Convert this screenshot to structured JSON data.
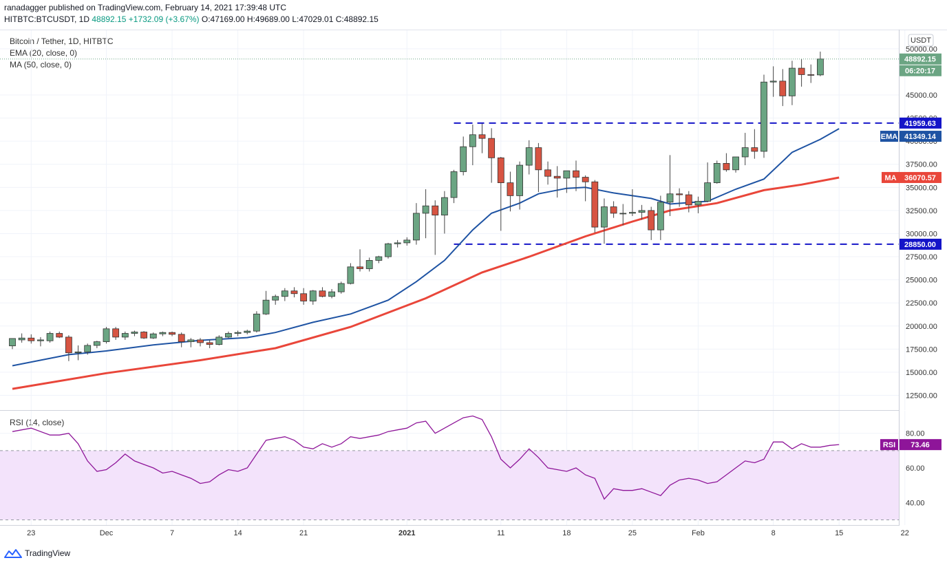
{
  "header": {
    "published_line": "ranadagger published on TradingView.com, February 14, 2021 17:39:48 UTC",
    "symbol": "HITBTC:BTCUSDT, 1D",
    "last": "48892.15",
    "change": "+1732.09 (+3.67%)",
    "open": "O:47169.00",
    "high": "H:49689.00",
    "low": "L:47029.01",
    "close": "C:48892.15"
  },
  "legend": {
    "title": "Bitcoin / Tether, 1D, HITBTC",
    "ema": "EMA (20, close, 0)",
    "ma": "MA (50, close, 0)",
    "rsi": "RSI (14, close)"
  },
  "currency_badge": "USDT",
  "price_labels": {
    "last_price": "48892.15",
    "countdown": "06:20:17",
    "resistance": "41959.63",
    "ema_name": "EMA",
    "ema_value": "41349.14",
    "ma_name": "MA",
    "ma_value": "36070.57",
    "support": "28850.00",
    "rsi_name": "RSI",
    "rsi_value": "73.46"
  },
  "colors": {
    "bull": "#6ba583",
    "bear": "#d75442",
    "ema": "#1e53a3",
    "ma": "#e9463a",
    "level_line": "#1414c8",
    "rsi_line": "#8e1599",
    "rsi_band": "#f3e3fb"
  },
  "watermark": "TradingView",
  "chart_data": {
    "type": "candlestick",
    "title": "Bitcoin / Tether, 1D, HITBTC",
    "y_axis": {
      "ticks": [
        "50000.00",
        "45000.00",
        "42500.00",
        "40000.00",
        "37500.00",
        "35000.00",
        "32500.00",
        "30000.00",
        "27500.00",
        "25000.00",
        "22500.00",
        "20000.00",
        "17500.00",
        "15000.00",
        "12500.00"
      ],
      "tick_values": [
        50000,
        45000,
        42500,
        40000,
        37500,
        35000,
        32500,
        30000,
        27500,
        25000,
        22500,
        20000,
        17500,
        15000,
        12500
      ],
      "range": [
        10900,
        52000
      ]
    },
    "x_axis": {
      "labels": [
        "23",
        "Dec",
        "7",
        "14",
        "21",
        "2021",
        "11",
        "18",
        "25",
        "Feb",
        "8",
        "15",
        "22"
      ],
      "label_days": [
        2,
        10,
        17,
        24,
        31,
        42,
        52,
        59,
        66,
        73,
        81,
        88,
        95
      ]
    },
    "horizontal_levels": [
      41959.63,
      28850.0
    ],
    "candles": [
      {
        "o": 17850,
        "h": 18600,
        "l": 17500,
        "c": 18650
      },
      {
        "o": 18500,
        "h": 19200,
        "l": 18200,
        "c": 18700
      },
      {
        "o": 18700,
        "h": 19100,
        "l": 18100,
        "c": 18400
      },
      {
        "o": 18400,
        "h": 18800,
        "l": 17800,
        "c": 18500
      },
      {
        "o": 18400,
        "h": 19400,
        "l": 18200,
        "c": 19200
      },
      {
        "o": 19200,
        "h": 19400,
        "l": 18700,
        "c": 18800
      },
      {
        "o": 18800,
        "h": 19000,
        "l": 16200,
        "c": 17100
      },
      {
        "o": 17100,
        "h": 17900,
        "l": 16300,
        "c": 17200
      },
      {
        "o": 17200,
        "h": 18100,
        "l": 16900,
        "c": 17900
      },
      {
        "o": 17900,
        "h": 18400,
        "l": 17600,
        "c": 18300
      },
      {
        "o": 18300,
        "h": 19900,
        "l": 18100,
        "c": 19700
      },
      {
        "o": 19700,
        "h": 19900,
        "l": 18500,
        "c": 18800
      },
      {
        "o": 18800,
        "h": 19400,
        "l": 18500,
        "c": 19200
      },
      {
        "o": 19200,
        "h": 19500,
        "l": 18900,
        "c": 19350
      },
      {
        "o": 19350,
        "h": 19450,
        "l": 18600,
        "c": 18700
      },
      {
        "o": 18700,
        "h": 19300,
        "l": 18600,
        "c": 19150
      },
      {
        "o": 19150,
        "h": 19400,
        "l": 18900,
        "c": 19300
      },
      {
        "o": 19300,
        "h": 19400,
        "l": 18900,
        "c": 19100
      },
      {
        "o": 19100,
        "h": 19300,
        "l": 17700,
        "c": 18300
      },
      {
        "o": 18300,
        "h": 18700,
        "l": 17700,
        "c": 18500
      },
      {
        "o": 18500,
        "h": 18700,
        "l": 17800,
        "c": 18200
      },
      {
        "o": 18200,
        "h": 18500,
        "l": 17600,
        "c": 18000
      },
      {
        "o": 18000,
        "h": 19000,
        "l": 17900,
        "c": 18800
      },
      {
        "o": 18800,
        "h": 19400,
        "l": 18700,
        "c": 19200
      },
      {
        "o": 19200,
        "h": 19500,
        "l": 18900,
        "c": 19300
      },
      {
        "o": 19300,
        "h": 19600,
        "l": 19100,
        "c": 19450
      },
      {
        "o": 19450,
        "h": 21600,
        "l": 19300,
        "c": 21300
      },
      {
        "o": 21300,
        "h": 23800,
        "l": 21200,
        "c": 22800
      },
      {
        "o": 22800,
        "h": 23400,
        "l": 22300,
        "c": 23200
      },
      {
        "o": 23200,
        "h": 24100,
        "l": 22700,
        "c": 23800
      },
      {
        "o": 23800,
        "h": 24200,
        "l": 23100,
        "c": 23500
      },
      {
        "o": 23500,
        "h": 24100,
        "l": 22300,
        "c": 22700
      },
      {
        "o": 22700,
        "h": 23900,
        "l": 22300,
        "c": 23800
      },
      {
        "o": 23800,
        "h": 24200,
        "l": 23100,
        "c": 23200
      },
      {
        "o": 23200,
        "h": 24000,
        "l": 23000,
        "c": 23700
      },
      {
        "o": 23700,
        "h": 24800,
        "l": 23500,
        "c": 24600
      },
      {
        "o": 24600,
        "h": 26800,
        "l": 24500,
        "c": 26400
      },
      {
        "o": 26400,
        "h": 28300,
        "l": 25900,
        "c": 26200
      },
      {
        "o": 26200,
        "h": 27400,
        "l": 25900,
        "c": 27100
      },
      {
        "o": 27100,
        "h": 27600,
        "l": 26800,
        "c": 27500
      },
      {
        "o": 27500,
        "h": 29000,
        "l": 27300,
        "c": 28900
      },
      {
        "o": 28900,
        "h": 29300,
        "l": 28500,
        "c": 29000
      },
      {
        "o": 29000,
        "h": 29600,
        "l": 28700,
        "c": 29300
      },
      {
        "o": 29300,
        "h": 33300,
        "l": 28800,
        "c": 32200
      },
      {
        "o": 32200,
        "h": 34800,
        "l": 29500,
        "c": 33000
      },
      {
        "o": 33000,
        "h": 33600,
        "l": 27700,
        "c": 32000
      },
      {
        "o": 32000,
        "h": 34600,
        "l": 30000,
        "c": 33900
      },
      {
        "o": 33900,
        "h": 36900,
        "l": 33300,
        "c": 36700
      },
      {
        "o": 36700,
        "h": 40500,
        "l": 36300,
        "c": 39400
      },
      {
        "o": 39400,
        "h": 41800,
        "l": 37400,
        "c": 40700
      },
      {
        "o": 40700,
        "h": 41900,
        "l": 38700,
        "c": 40300
      },
      {
        "o": 40300,
        "h": 41400,
        "l": 35500,
        "c": 38200
      },
      {
        "o": 38200,
        "h": 38300,
        "l": 30300,
        "c": 35500
      },
      {
        "o": 35500,
        "h": 36700,
        "l": 32400,
        "c": 34100
      },
      {
        "o": 34100,
        "h": 37800,
        "l": 32600,
        "c": 37400
      },
      {
        "o": 37400,
        "h": 40100,
        "l": 36400,
        "c": 39300
      },
      {
        "o": 39300,
        "h": 39800,
        "l": 34500,
        "c": 36900
      },
      {
        "o": 36900,
        "h": 37800,
        "l": 35300,
        "c": 36200
      },
      {
        "o": 36200,
        "h": 37300,
        "l": 33900,
        "c": 36000
      },
      {
        "o": 36000,
        "h": 36500,
        "l": 34400,
        "c": 36800
      },
      {
        "o": 36800,
        "h": 37900,
        "l": 34600,
        "c": 36100
      },
      {
        "o": 36100,
        "h": 36300,
        "l": 33500,
        "c": 35600
      },
      {
        "o": 35600,
        "h": 35800,
        "l": 30100,
        "c": 30700
      },
      {
        "o": 30700,
        "h": 33800,
        "l": 28900,
        "c": 32900
      },
      {
        "o": 32900,
        "h": 33500,
        "l": 31700,
        "c": 32200
      },
      {
        "o": 32200,
        "h": 33200,
        "l": 30900,
        "c": 32200
      },
      {
        "o": 32200,
        "h": 34800,
        "l": 31900,
        "c": 32300
      },
      {
        "o": 32300,
        "h": 33100,
        "l": 31500,
        "c": 32500
      },
      {
        "o": 32500,
        "h": 32900,
        "l": 29300,
        "c": 30400
      },
      {
        "o": 30400,
        "h": 34100,
        "l": 29300,
        "c": 33400
      },
      {
        "o": 33400,
        "h": 38500,
        "l": 31900,
        "c": 34300
      },
      {
        "o": 34300,
        "h": 34900,
        "l": 32900,
        "c": 34200
      },
      {
        "o": 34200,
        "h": 34600,
        "l": 32300,
        "c": 33100
      },
      {
        "o": 33100,
        "h": 34000,
        "l": 32200,
        "c": 33500
      },
      {
        "o": 33500,
        "h": 37700,
        "l": 33400,
        "c": 35500
      },
      {
        "o": 35500,
        "h": 37900,
        "l": 35400,
        "c": 37600
      },
      {
        "o": 37600,
        "h": 38700,
        "l": 36700,
        "c": 36900
      },
      {
        "o": 36900,
        "h": 38300,
        "l": 36600,
        "c": 38300
      },
      {
        "o": 38300,
        "h": 40900,
        "l": 37400,
        "c": 39300
      },
      {
        "o": 39300,
        "h": 41300,
        "l": 38100,
        "c": 38900
      },
      {
        "o": 38900,
        "h": 47200,
        "l": 38200,
        "c": 46400
      },
      {
        "o": 46400,
        "h": 48100,
        "l": 44800,
        "c": 46500
      },
      {
        "o": 46500,
        "h": 47800,
        "l": 43800,
        "c": 44900
      },
      {
        "o": 44900,
        "h": 48700,
        "l": 43900,
        "c": 47900
      },
      {
        "o": 47900,
        "h": 48900,
        "l": 45900,
        "c": 47200
      },
      {
        "o": 47200,
        "h": 48300,
        "l": 46300,
        "c": 47169
      },
      {
        "o": 47169,
        "h": 49689,
        "l": 47029,
        "c": 48892
      }
    ],
    "ema20": [
      {
        "d": 0,
        "v": 15700
      },
      {
        "d": 6,
        "v": 16900
      },
      {
        "d": 10,
        "v": 17300
      },
      {
        "d": 15,
        "v": 17950
      },
      {
        "d": 20,
        "v": 18450
      },
      {
        "d": 25,
        "v": 18750
      },
      {
        "d": 28,
        "v": 19300
      },
      {
        "d": 32,
        "v": 20400
      },
      {
        "d": 36,
        "v": 21300
      },
      {
        "d": 40,
        "v": 22800
      },
      {
        "d": 43,
        "v": 24800
      },
      {
        "d": 46,
        "v": 27100
      },
      {
        "d": 49,
        "v": 30400
      },
      {
        "d": 51,
        "v": 32200
      },
      {
        "d": 54,
        "v": 33300
      },
      {
        "d": 56,
        "v": 34300
      },
      {
        "d": 59,
        "v": 34900
      },
      {
        "d": 61,
        "v": 35000
      },
      {
        "d": 64,
        "v": 34400
      },
      {
        "d": 68,
        "v": 33800
      },
      {
        "d": 70,
        "v": 33200
      },
      {
        "d": 74,
        "v": 33500
      },
      {
        "d": 77,
        "v": 34800
      },
      {
        "d": 80,
        "v": 35900
      },
      {
        "d": 83,
        "v": 38800
      },
      {
        "d": 86,
        "v": 40200
      },
      {
        "d": 88,
        "v": 41349
      }
    ],
    "ma50": [
      {
        "d": 0,
        "v": 13200
      },
      {
        "d": 10,
        "v": 14900
      },
      {
        "d": 20,
        "v": 16300
      },
      {
        "d": 28,
        "v": 17600
      },
      {
        "d": 36,
        "v": 19900
      },
      {
        "d": 44,
        "v": 23000
      },
      {
        "d": 50,
        "v": 25800
      },
      {
        "d": 55,
        "v": 27500
      },
      {
        "d": 61,
        "v": 29700
      },
      {
        "d": 66,
        "v": 31300
      },
      {
        "d": 70,
        "v": 32500
      },
      {
        "d": 75,
        "v": 33300
      },
      {
        "d": 80,
        "v": 34700
      },
      {
        "d": 84,
        "v": 35300
      },
      {
        "d": 88,
        "v": 36070
      }
    ],
    "rsi": {
      "axis_ticks": [
        "80.00",
        "60.00",
        "40.00"
      ],
      "tick_values": [
        80,
        60,
        40
      ],
      "range": [
        27,
        93
      ],
      "band": [
        30,
        70
      ],
      "values": [
        {
          "d": 0,
          "v": 81
        },
        {
          "d": 2,
          "v": 83
        },
        {
          "d": 4,
          "v": 79
        },
        {
          "d": 5,
          "v": 79
        },
        {
          "d": 6,
          "v": 80
        },
        {
          "d": 7,
          "v": 74
        },
        {
          "d": 8,
          "v": 64
        },
        {
          "d": 9,
          "v": 58
        },
        {
          "d": 10,
          "v": 59
        },
        {
          "d": 11,
          "v": 63
        },
        {
          "d": 12,
          "v": 68
        },
        {
          "d": 13,
          "v": 64
        },
        {
          "d": 14,
          "v": 62
        },
        {
          "d": 15,
          "v": 60
        },
        {
          "d": 16,
          "v": 57
        },
        {
          "d": 17,
          "v": 58
        },
        {
          "d": 18,
          "v": 56
        },
        {
          "d": 19,
          "v": 54
        },
        {
          "d": 20,
          "v": 51
        },
        {
          "d": 21,
          "v": 52
        },
        {
          "d": 22,
          "v": 56
        },
        {
          "d": 23,
          "v": 59
        },
        {
          "d": 24,
          "v": 58
        },
        {
          "d": 25,
          "v": 60
        },
        {
          "d": 26,
          "v": 68
        },
        {
          "d": 27,
          "v": 76
        },
        {
          "d": 28,
          "v": 77
        },
        {
          "d": 29,
          "v": 78
        },
        {
          "d": 30,
          "v": 76
        },
        {
          "d": 31,
          "v": 72
        },
        {
          "d": 32,
          "v": 71
        },
        {
          "d": 33,
          "v": 74
        },
        {
          "d": 34,
          "v": 72
        },
        {
          "d": 35,
          "v": 74
        },
        {
          "d": 36,
          "v": 78
        },
        {
          "d": 37,
          "v": 77
        },
        {
          "d": 38,
          "v": 78
        },
        {
          "d": 39,
          "v": 79
        },
        {
          "d": 40,
          "v": 81
        },
        {
          "d": 41,
          "v": 82
        },
        {
          "d": 42,
          "v": 83
        },
        {
          "d": 43,
          "v": 86
        },
        {
          "d": 44,
          "v": 87
        },
        {
          "d": 45,
          "v": 80
        },
        {
          "d": 46,
          "v": 83
        },
        {
          "d": 47,
          "v": 86
        },
        {
          "d": 48,
          "v": 89
        },
        {
          "d": 49,
          "v": 90
        },
        {
          "d": 50,
          "v": 88
        },
        {
          "d": 51,
          "v": 78
        },
        {
          "d": 52,
          "v": 65
        },
        {
          "d": 53,
          "v": 60
        },
        {
          "d": 54,
          "v": 65
        },
        {
          "d": 55,
          "v": 71
        },
        {
          "d": 56,
          "v": 66
        },
        {
          "d": 57,
          "v": 60
        },
        {
          "d": 58,
          "v": 59
        },
        {
          "d": 59,
          "v": 58
        },
        {
          "d": 60,
          "v": 60
        },
        {
          "d": 61,
          "v": 56
        },
        {
          "d": 62,
          "v": 54
        },
        {
          "d": 63,
          "v": 42
        },
        {
          "d": 64,
          "v": 48
        },
        {
          "d": 65,
          "v": 47
        },
        {
          "d": 66,
          "v": 47
        },
        {
          "d": 67,
          "v": 48
        },
        {
          "d": 68,
          "v": 46
        },
        {
          "d": 69,
          "v": 44
        },
        {
          "d": 70,
          "v": 50
        },
        {
          "d": 71,
          "v": 53
        },
        {
          "d": 72,
          "v": 54
        },
        {
          "d": 73,
          "v": 53
        },
        {
          "d": 74,
          "v": 51
        },
        {
          "d": 75,
          "v": 52
        },
        {
          "d": 76,
          "v": 56
        },
        {
          "d": 77,
          "v": 60
        },
        {
          "d": 78,
          "v": 64
        },
        {
          "d": 79,
          "v": 63
        },
        {
          "d": 80,
          "v": 65
        },
        {
          "d": 81,
          "v": 75
        },
        {
          "d": 82,
          "v": 75
        },
        {
          "d": 83,
          "v": 71
        },
        {
          "d": 84,
          "v": 74
        },
        {
          "d": 85,
          "v": 72
        },
        {
          "d": 86,
          "v": 72
        },
        {
          "d": 87,
          "v": 73
        },
        {
          "d": 88,
          "v": 73.46
        }
      ]
    }
  }
}
